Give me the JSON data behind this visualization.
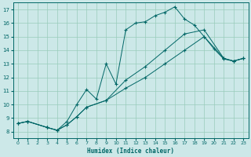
{
  "xlabel": "Humidex (Indice chaleur)",
  "bg_color": "#cce8e8",
  "grid_color": "#99ccbb",
  "line_color": "#006666",
  "xlim": [
    -0.5,
    23.5
  ],
  "ylim": [
    7.5,
    17.5
  ],
  "xticks": [
    0,
    1,
    2,
    3,
    4,
    5,
    6,
    7,
    8,
    9,
    10,
    11,
    12,
    13,
    14,
    15,
    16,
    17,
    18,
    19,
    20,
    21,
    22,
    23
  ],
  "yticks": [
    8,
    9,
    10,
    11,
    12,
    13,
    14,
    15,
    16,
    17
  ],
  "line1_x": [
    0,
    1,
    3,
    4,
    5,
    6,
    7,
    8,
    9,
    10,
    11,
    12,
    13,
    14,
    15,
    16,
    17,
    18,
    19,
    20,
    21,
    22,
    23
  ],
  "line1_y": [
    8.6,
    8.75,
    8.3,
    8.1,
    8.75,
    10.0,
    11.1,
    10.4,
    13.0,
    11.5,
    15.5,
    16.0,
    16.1,
    16.55,
    16.8,
    17.2,
    16.3,
    15.85,
    15.0,
    14.1,
    13.35,
    13.2,
    13.4
  ],
  "line2_x": [
    0,
    1,
    3,
    4,
    5,
    6,
    7,
    9,
    11,
    13,
    15,
    17,
    19,
    21,
    22,
    23
  ],
  "line2_y": [
    8.6,
    8.75,
    8.3,
    8.1,
    8.5,
    9.1,
    9.8,
    10.3,
    11.2,
    12.0,
    13.0,
    14.0,
    15.0,
    13.4,
    13.2,
    13.4
  ],
  "line3_x": [
    0,
    1,
    3,
    4,
    5,
    6,
    7,
    9,
    11,
    13,
    15,
    17,
    19,
    21,
    22,
    23
  ],
  "line3_y": [
    8.6,
    8.75,
    8.3,
    8.1,
    8.5,
    9.1,
    9.8,
    10.3,
    11.8,
    12.8,
    14.0,
    15.2,
    15.5,
    13.4,
    13.2,
    13.4
  ]
}
